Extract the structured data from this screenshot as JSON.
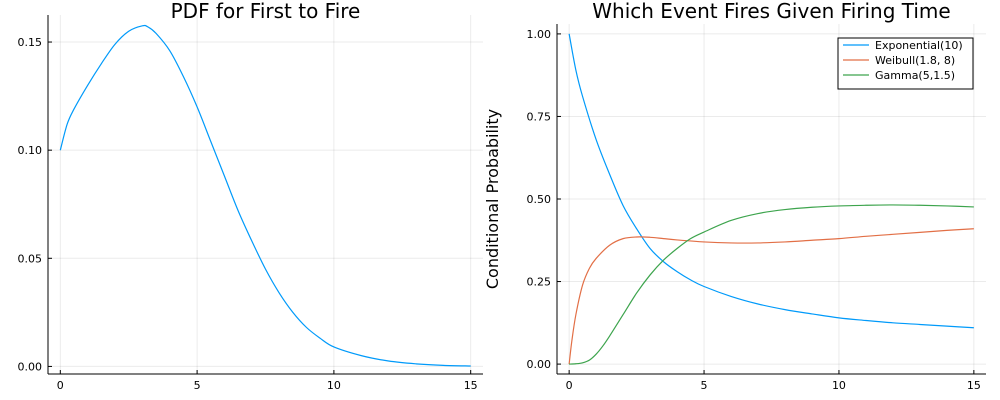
{
  "chart_data": [
    {
      "type": "line",
      "title": "PDF for First to Fire",
      "xlabel": "",
      "ylabel": "",
      "xlim": [
        -0.45,
        15.45
      ],
      "ylim": [
        -0.0035,
        0.1625
      ],
      "xticks": [
        0,
        5,
        10,
        15
      ],
      "xtick_labels": [
        "0",
        "5",
        "10",
        "15"
      ],
      "yticks": [
        0,
        0.05,
        0.1,
        0.15
      ],
      "ytick_labels": [
        "0.00",
        "0.05",
        "0.10",
        "0.15"
      ],
      "grid": true,
      "legend": "none",
      "series": [
        {
          "color": "#009AFA",
          "x": [
            0,
            0.25,
            0.5,
            1,
            1.5,
            2,
            2.5,
            3,
            3.2,
            3.5,
            4,
            4.5,
            5,
            5.5,
            6,
            6.5,
            7,
            7.5,
            8,
            8.5,
            9,
            9.5,
            10,
            11,
            12,
            13,
            14,
            15
          ],
          "y": [
            0.1,
            0.112,
            0.119,
            0.13,
            0.14,
            0.149,
            0.155,
            0.1575,
            0.157,
            0.154,
            0.146,
            0.134,
            0.12,
            0.104,
            0.088,
            0.072,
            0.058,
            0.045,
            0.034,
            0.025,
            0.018,
            0.013,
            0.009,
            0.005,
            0.0025,
            0.0012,
            0.0005,
            0.0002
          ]
        }
      ]
    },
    {
      "type": "line",
      "title": "Which Event Fires Given Firing Time",
      "xlabel": "",
      "ylabel": "Conditional Probability",
      "xlim": [
        -0.45,
        15.45
      ],
      "ylim": [
        -0.03,
        1.03
      ],
      "xticks": [
        0,
        5,
        10,
        15
      ],
      "xtick_labels": [
        "0",
        "5",
        "10",
        "15"
      ],
      "yticks": [
        0,
        0.25,
        0.5,
        0.75,
        1.0
      ],
      "ytick_labels": [
        "0.00",
        "0.25",
        "0.50",
        "0.75",
        "1.00"
      ],
      "grid": true,
      "legend": "top-right",
      "series": [
        {
          "name": "Exponential(10)",
          "color": "#009AFA",
          "x": [
            0,
            0.25,
            0.5,
            1,
            1.5,
            2,
            2.5,
            3,
            3.5,
            4,
            4.5,
            5,
            6,
            7,
            8,
            9,
            10,
            11,
            12,
            13,
            14,
            15
          ],
          "y": [
            1.0,
            0.89,
            0.81,
            0.68,
            0.575,
            0.48,
            0.41,
            0.35,
            0.31,
            0.28,
            0.255,
            0.235,
            0.205,
            0.182,
            0.165,
            0.152,
            0.14,
            0.132,
            0.125,
            0.12,
            0.115,
            0.11
          ]
        },
        {
          "name": "Weibull(1.8, 8)",
          "color": "#E26F46",
          "x": [
            0,
            0.1,
            0.25,
            0.5,
            0.75,
            1,
            1.5,
            2,
            2.5,
            3,
            3.5,
            4,
            5,
            6,
            7,
            8,
            9,
            10,
            11,
            12,
            13,
            14,
            15
          ],
          "y": [
            0,
            0.07,
            0.15,
            0.24,
            0.29,
            0.32,
            0.36,
            0.38,
            0.385,
            0.384,
            0.38,
            0.376,
            0.37,
            0.367,
            0.367,
            0.37,
            0.375,
            0.38,
            0.387,
            0.393,
            0.399,
            0.405,
            0.41
          ]
        },
        {
          "name": "Gamma(5,1.5)",
          "color": "#3DA44D",
          "x": [
            0,
            0.25,
            0.5,
            0.75,
            1,
            1.25,
            1.5,
            2,
            2.5,
            3,
            3.5,
            4,
            4.5,
            5,
            6,
            7,
            8,
            9,
            10,
            11,
            12,
            13,
            14,
            15
          ],
          "y": [
            0,
            0.001,
            0.004,
            0.012,
            0.03,
            0.055,
            0.085,
            0.15,
            0.215,
            0.27,
            0.315,
            0.35,
            0.38,
            0.4,
            0.435,
            0.456,
            0.468,
            0.475,
            0.479,
            0.481,
            0.482,
            0.481,
            0.479,
            0.476
          ]
        }
      ]
    }
  ]
}
